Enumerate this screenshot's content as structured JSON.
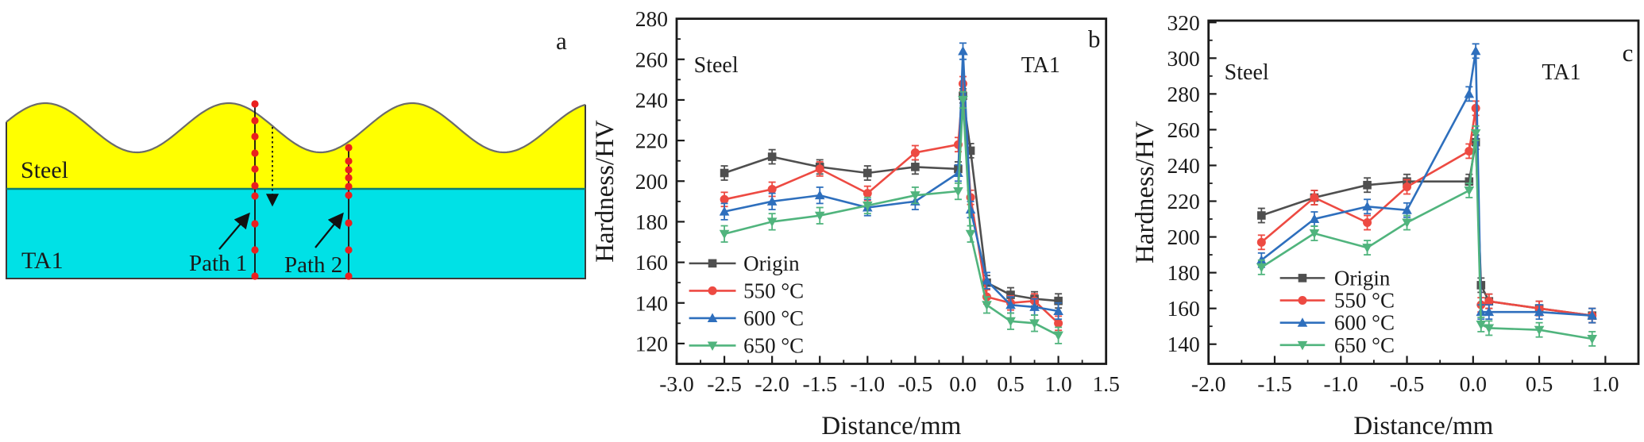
{
  "panel_a": {
    "label": "a",
    "steel_label": "Steel",
    "ta1_label": "TA1",
    "path1_label": "Path 1",
    "path2_label": "Path 2",
    "colors": {
      "steel_fill": "#ffff00",
      "ta1_fill": "#00e1e6",
      "surface_outline": "#6b6b6b",
      "interface_line": "#0e7d72",
      "indent_dot": "#ea1f1f",
      "border": "#3a3a3a"
    }
  },
  "chart_data": [
    {
      "id": "b",
      "type": "line",
      "panel_label": "b",
      "xlabel": "Distance/mm",
      "ylabel": "Hardness/HV",
      "xlim": [
        -3.0,
        1.5
      ],
      "ylim": [
        110,
        280
      ],
      "xticks": [
        -3.0,
        -2.5,
        -2.0,
        -1.5,
        -1.0,
        -0.5,
        0.0,
        0.5,
        1.0,
        1.5
      ],
      "xtick_labels": [
        "-3.0",
        "-2.5",
        "-2.0",
        "-1.5",
        "-1.0",
        "-0.5",
        "0.0",
        "0.5",
        "1.0",
        "1.5"
      ],
      "yticks": [
        120,
        140,
        160,
        180,
        200,
        220,
        240,
        260,
        280
      ],
      "x_minor_step": 0.25,
      "y_minor_step": 10,
      "grid": false,
      "annotations": [
        {
          "text": "Steel",
          "x": -2.82,
          "y": 257,
          "anchor": "start",
          "size": 28
        },
        {
          "text": "TA1",
          "x": 0.61,
          "y": 257,
          "anchor": "start",
          "size": 28
        },
        {
          "text": "b",
          "x": 1.44,
          "y": 270,
          "anchor": "end",
          "size": 31
        }
      ],
      "legend": {
        "x_line_start": -2.87,
        "x_line_end": -2.38,
        "x_text": -2.3,
        "row_y": [
          159.5,
          146,
          132.5,
          119
        ]
      },
      "series": [
        {
          "name": "Origin",
          "color": "#4f4f4f",
          "marker": "square",
          "err": 3.5,
          "x": [
            -2.5,
            -2.0,
            -1.5,
            -1.0,
            -0.5,
            -0.05,
            0.0,
            0.08,
            0.25,
            0.5,
            0.75,
            1.0
          ],
          "y": [
            204,
            212,
            207,
            204,
            207,
            206,
            242,
            215,
            150,
            144,
            142,
            141
          ]
        },
        {
          "name": "550 °C",
          "color": "#ed4a42",
          "marker": "circle",
          "err": 3.5,
          "x": [
            -2.5,
            -2.0,
            -1.5,
            -1.0,
            -0.5,
            -0.05,
            0.0,
            0.08,
            0.25,
            0.5,
            0.75,
            1.0
          ],
          "y": [
            191,
            196,
            206,
            194,
            214,
            218,
            248,
            192,
            143,
            140,
            141,
            130
          ]
        },
        {
          "name": "600 °C",
          "color": "#2e6fbd",
          "marker": "triangle-up",
          "err": 4,
          "x": [
            -2.5,
            -2.0,
            -1.5,
            -1.0,
            -0.5,
            -0.05,
            0.0,
            0.08,
            0.25,
            0.5,
            0.75,
            1.0
          ],
          "y": [
            185,
            190,
            193,
            187,
            190,
            204,
            264,
            186,
            151,
            139,
            138,
            136
          ]
        },
        {
          "name": "650 °C",
          "color": "#50b47d",
          "marker": "triangle-down",
          "err": 4,
          "x": [
            -2.5,
            -2.0,
            -1.5,
            -1.0,
            -0.5,
            -0.05,
            0.0,
            0.08,
            0.25,
            0.5,
            0.75,
            1.0
          ],
          "y": [
            174,
            180,
            183,
            188,
            193,
            195,
            240,
            174,
            139,
            131,
            130,
            124
          ]
        }
      ]
    },
    {
      "id": "c",
      "type": "line",
      "panel_label": "c",
      "xlabel": "Distance/mm",
      "ylabel": "Hardness/HV",
      "xlim": [
        -2.0,
        1.25
      ],
      "ylim": [
        129,
        321
      ],
      "xticks": [
        -2.0,
        -1.5,
        -1.0,
        -0.5,
        0.0,
        0.5,
        1.0
      ],
      "xtick_labels": [
        "-2.0",
        "-1.5",
        "-1.0",
        "-0.5",
        "0.0",
        "0.5",
        "1.0"
      ],
      "yticks": [
        140,
        160,
        180,
        200,
        220,
        240,
        260,
        280,
        300,
        320
      ],
      "x_minor_step": 0.25,
      "y_minor_step": 10,
      "grid": false,
      "annotations": [
        {
          "text": "Steel",
          "x": -1.88,
          "y": 292,
          "anchor": "start",
          "size": 28
        },
        {
          "text": "TA1",
          "x": 0.52,
          "y": 292,
          "anchor": "start",
          "size": 28
        },
        {
          "text": "c",
          "x": 1.21,
          "y": 303,
          "anchor": "end",
          "size": 31
        }
      ],
      "legend": {
        "x_line_start": -1.46,
        "x_line_end": -1.12,
        "x_text": -1.05,
        "row_y": [
          177,
          164.5,
          152,
          139.5
        ]
      },
      "series": [
        {
          "name": "Origin",
          "color": "#4f4f4f",
          "marker": "square",
          "err": 4,
          "x": [
            -1.6,
            -1.2,
            -0.8,
            -0.5,
            -0.03,
            0.02,
            0.06,
            0.12,
            0.5,
            0.9
          ],
          "y": [
            212,
            222,
            229,
            231,
            231,
            253,
            173,
            164,
            160,
            156
          ]
        },
        {
          "name": "550 °C",
          "color": "#ed4a42",
          "marker": "circle",
          "err": 4,
          "x": [
            -1.6,
            -1.2,
            -0.8,
            -0.5,
            -0.03,
            0.02,
            0.06,
            0.12,
            0.5,
            0.9
          ],
          "y": [
            197,
            222,
            208,
            228,
            248,
            272,
            162,
            164,
            160,
            156
          ]
        },
        {
          "name": "600 °C",
          "color": "#2e6fbd",
          "marker": "triangle-up",
          "err": 4,
          "x": [
            -1.6,
            -1.2,
            -0.8,
            -0.5,
            -0.03,
            0.02,
            0.06,
            0.12,
            0.5,
            0.9
          ],
          "y": [
            187,
            210,
            217,
            215,
            280,
            304,
            158,
            158,
            158,
            156
          ]
        },
        {
          "name": "650 °C",
          "color": "#50b47d",
          "marker": "triangle-down",
          "err": 4,
          "x": [
            -1.6,
            -1.2,
            -0.8,
            -0.5,
            -0.03,
            0.02,
            0.06,
            0.12,
            0.5,
            0.9
          ],
          "y": [
            183,
            202,
            194,
            208,
            226,
            258,
            151,
            149,
            148,
            143
          ]
        }
      ]
    }
  ]
}
